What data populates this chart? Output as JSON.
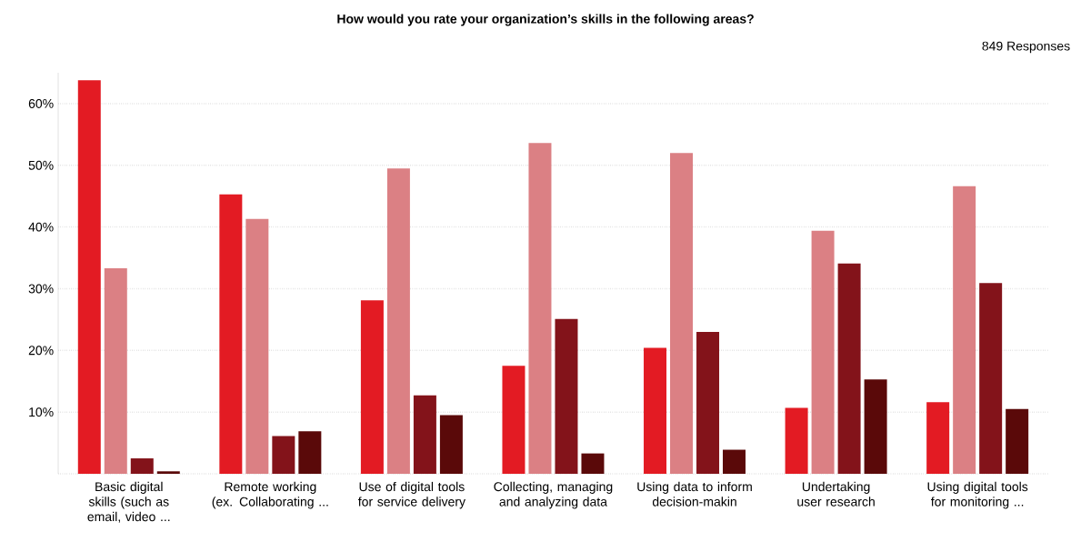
{
  "chart_data": {
    "type": "bar",
    "title": "How would you rate your organization’s skills in the following areas?",
    "annotations": [
      "849 Responses"
    ],
    "categories": [
      "Basic digital skills (such as email, video ...",
      "Remote working (ex. Collaborating ...",
      "Use of digital tools for service delivery",
      "Collecting, managing and analyzing data",
      "Using data to inform decision-makin",
      "Undertaking user research",
      "Using digital tools for monitoring ..."
    ],
    "series": [
      {
        "color": "#e31b23",
        "values": [
          63.8,
          45.3,
          28.1,
          17.5,
          20.4,
          10.7,
          11.6
        ]
      },
      {
        "color": "#db8084",
        "values": [
          33.3,
          41.3,
          49.5,
          53.6,
          52.0,
          39.4,
          46.6
        ]
      },
      {
        "color": "#83131a",
        "values": [
          2.5,
          6.1,
          12.7,
          25.1,
          23.0,
          34.1,
          30.9
        ]
      },
      {
        "color": "#5a0909",
        "values": [
          0.4,
          6.9,
          9.5,
          3.3,
          3.9,
          15.3,
          10.5
        ]
      }
    ],
    "ylim": [
      0,
      65
    ],
    "yticks": [
      {
        "value": 0,
        "label": null
      },
      {
        "value": 10,
        "label": "10%"
      },
      {
        "value": 20,
        "label": "20%"
      },
      {
        "value": 30,
        "label": "30%"
      },
      {
        "value": 40,
        "label": "40%"
      },
      {
        "value": 50,
        "label": "50%"
      },
      {
        "value": 60,
        "label": "60%"
      }
    ],
    "grid": "y"
  }
}
